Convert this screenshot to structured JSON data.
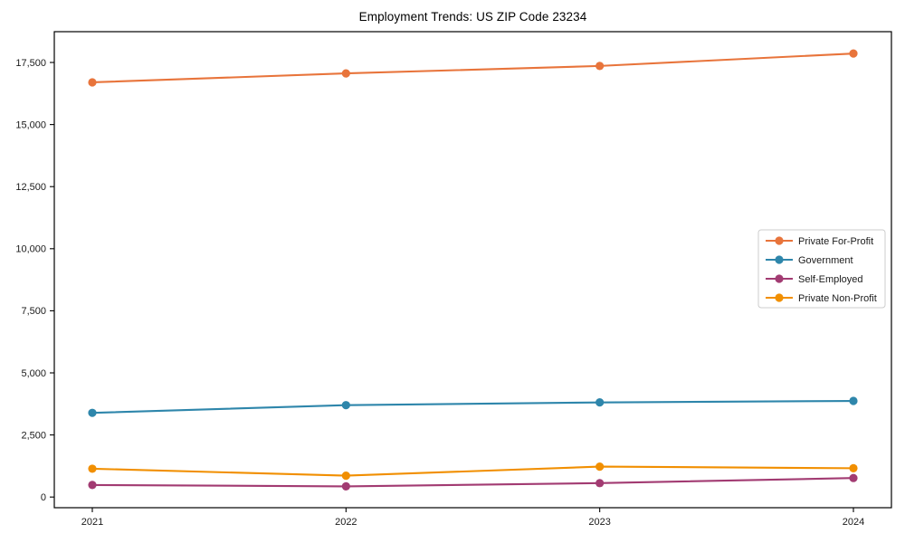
{
  "page": {
    "background": "#ffffff"
  },
  "chart_data": {
    "type": "line",
    "title": "Employment Trends: US ZIP Code 23234",
    "xlabel": "",
    "ylabel": "",
    "grid": false,
    "x_categories": [
      "2021",
      "2022",
      "2023",
      "2024"
    ],
    "series": [
      {
        "name": "Private For-Profit",
        "color": "#E8743B",
        "values": [
          16700,
          17060,
          17360,
          17860
        ]
      },
      {
        "name": "Government",
        "color": "#2E86AB",
        "values": [
          3390,
          3700,
          3810,
          3870
        ]
      },
      {
        "name": "Self-Employed",
        "color": "#A23B72",
        "values": [
          485,
          430,
          560,
          765
        ]
      },
      {
        "name": "Private Non-Profit",
        "color": "#F18F01",
        "values": [
          1140,
          860,
          1225,
          1160
        ]
      }
    ],
    "yticks": [
      {
        "value": 0,
        "label": "0"
      },
      {
        "value": 2500,
        "label": "2,500"
      },
      {
        "value": 5000,
        "label": "5,000"
      },
      {
        "value": 7500,
        "label": "7,500"
      },
      {
        "value": 10000,
        "label": "10,000"
      },
      {
        "value": 12500,
        "label": "12,500"
      },
      {
        "value": 15000,
        "label": "15,000"
      },
      {
        "value": 17500,
        "label": "17,500"
      }
    ],
    "ylim": [
      -430,
      18740
    ],
    "legend_position": "right-center",
    "marker": "circle",
    "axis_color": "#000000",
    "legend_border_color": "#cccccc"
  }
}
